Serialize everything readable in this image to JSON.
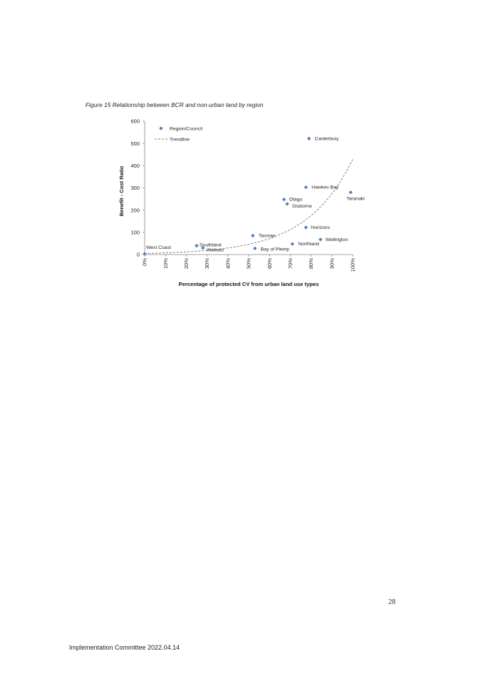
{
  "caption": "Figure 15 Relationship between  BCR and non-urban land by region",
  "page_number": "28",
  "footer": "Implementation Committee 2022.04.14",
  "colors": {
    "marker": "#4f81bd",
    "trendline": "#808080",
    "axis": "#868686"
  },
  "chart_data": {
    "type": "scatter",
    "xlabel": "Percentage of protected CV from urban land use types",
    "ylabel": "Benefit - Cost  Ratio",
    "xlim": [
      0,
      1
    ],
    "ylim": [
      0,
      600
    ],
    "x_ticks": [
      0,
      0.1,
      0.2,
      0.3,
      0.4,
      0.5,
      0.6,
      0.7,
      0.8,
      0.9,
      1.0
    ],
    "x_tick_labels": [
      "0%",
      "10%",
      "20%",
      "30%",
      "40%",
      "50%",
      "60%",
      "70%",
      "80%",
      "90%",
      "100%"
    ],
    "y_ticks": [
      0,
      100,
      200,
      300,
      400,
      500,
      600
    ],
    "y_tick_labels": [
      "0",
      "100",
      "200",
      "300",
      "400",
      "500",
      "600"
    ],
    "legend": {
      "position": "top-left",
      "entries": [
        "Region/Council",
        "Trendline"
      ]
    },
    "series": [
      {
        "name": "Region/Council",
        "points": [
          {
            "label": "West Coast",
            "x": 0.0,
            "y": 3
          },
          {
            "label": "Southland",
            "x": 0.25,
            "y": 40
          },
          {
            "label": "Waikato",
            "x": 0.28,
            "y": 30
          },
          {
            "label": "Tasman",
            "x": 0.52,
            "y": 85
          },
          {
            "label": "Bay of Plenty",
            "x": 0.53,
            "y": 28
          },
          {
            "label": "Otago",
            "x": 0.67,
            "y": 248
          },
          {
            "label": "Gisborne",
            "x": 0.685,
            "y": 228
          },
          {
            "label": "Northland",
            "x": 0.71,
            "y": 48
          },
          {
            "label": "Hawkes Bay",
            "x": 0.775,
            "y": 303
          },
          {
            "label": "Horizons",
            "x": 0.775,
            "y": 122
          },
          {
            "label": "Canterbury",
            "x": 0.79,
            "y": 522
          },
          {
            "label": "Wellington",
            "x": 0.845,
            "y": 68
          },
          {
            "label": "Taranaki",
            "x": 0.99,
            "y": 280
          }
        ]
      }
    ],
    "trendline": {
      "name": "Trendline",
      "type": "exponential",
      "a": 5,
      "b": 4.45
    }
  }
}
